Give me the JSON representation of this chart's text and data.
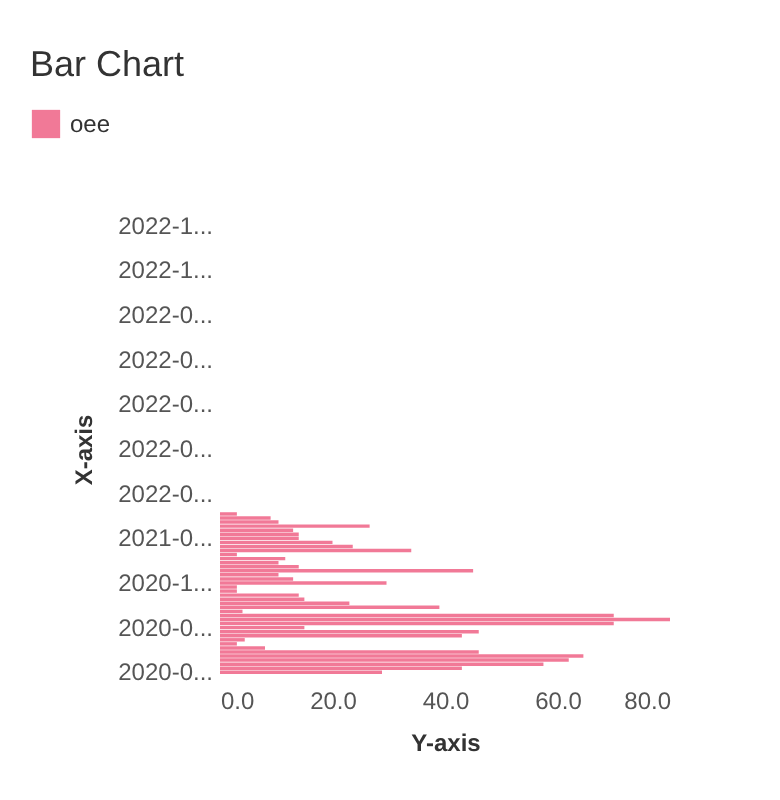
{
  "chart_data": {
    "type": "bar",
    "orientation": "horizontal",
    "title": "Bar Chart",
    "xlabel": "Y-axis",
    "ylabel": "X-axis",
    "legend": "top left",
    "categories": [
      "2022-1...",
      null,
      null,
      null,
      null,
      null,
      null,
      null,
      null,
      null,
      null,
      "2022-1...",
      null,
      null,
      null,
      null,
      null,
      null,
      null,
      null,
      null,
      null,
      "2022-0...",
      null,
      null,
      null,
      null,
      null,
      null,
      null,
      null,
      null,
      null,
      "2022-0...",
      null,
      null,
      null,
      null,
      null,
      null,
      null,
      null,
      null,
      null,
      "2022-0...",
      null,
      null,
      null,
      null,
      null,
      null,
      null,
      null,
      null,
      null,
      "2022-0...",
      null,
      null,
      null,
      null,
      null,
      null,
      null,
      null,
      null,
      null,
      "2022-0...",
      null,
      null,
      null,
      null,
      null,
      null,
      null,
      null,
      null,
      null,
      "2021-0...",
      null,
      null,
      null,
      null,
      null,
      null,
      null,
      null,
      null,
      null,
      "2020-1...",
      null,
      null,
      null,
      null,
      null,
      null,
      null,
      null,
      null,
      null,
      "2020-0...",
      null,
      null,
      null,
      null,
      null,
      null,
      null,
      null,
      null,
      null,
      "2020-0..."
    ],
    "series": [
      {
        "name": "oee",
        "color": "#f06a8c",
        "values": [
          null,
          null,
          null,
          null,
          null,
          null,
          null,
          null,
          null,
          null,
          null,
          null,
          null,
          null,
          null,
          null,
          null,
          null,
          null,
          null,
          null,
          null,
          null,
          null,
          null,
          null,
          null,
          null,
          null,
          null,
          null,
          null,
          null,
          null,
          null,
          null,
          null,
          null,
          null,
          null,
          null,
          null,
          null,
          null,
          null,
          null,
          null,
          null,
          null,
          null,
          null,
          null,
          null,
          null,
          null,
          null,
          null,
          null,
          null,
          null,
          null,
          null,
          null,
          null,
          null,
          null,
          null,
          null,
          null,
          null,
          null,
          3,
          9,
          10.4,
          26.6,
          13,
          14,
          14,
          20,
          23.6,
          34,
          3,
          11.6,
          10.4,
          14,
          45,
          10.4,
          13,
          29.6,
          3,
          3,
          14,
          15,
          23,
          39,
          4,
          70,
          80,
          70,
          15,
          46,
          43,
          4.4,
          3,
          8,
          46,
          64.6,
          62,
          57.5,
          43,
          28.8
        ]
      }
    ],
    "xlim": [
      0,
      80
    ],
    "xticks": [
      {
        "value": 0,
        "label": "0.0"
      },
      {
        "value": 20,
        "label": "20.0"
      },
      {
        "value": 40,
        "label": "40.0"
      },
      {
        "value": 60,
        "label": "60.0"
      },
      {
        "value": 80,
        "label": "80.0"
      }
    ]
  }
}
